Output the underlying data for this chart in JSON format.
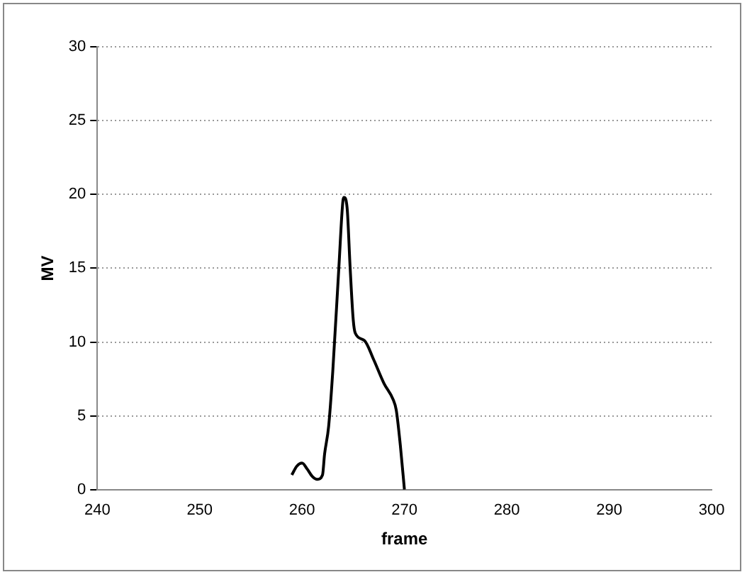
{
  "chart_data": {
    "type": "line",
    "xlabel": "frame",
    "ylabel": "MV",
    "x": [
      259,
      259.5,
      260,
      260.5,
      261,
      261.5,
      262,
      262.2,
      262.6,
      263,
      263.6,
      264,
      264.1,
      264.4,
      264.7,
      265,
      265.2,
      266.1,
      267,
      268,
      268.9,
      269.2,
      269.6,
      270
    ],
    "series": [
      {
        "color": "#000000",
        "values": [
          1,
          1.6,
          1.8,
          1.4,
          0.9,
          0.7,
          1,
          2.4,
          4.3,
          8,
          15.1,
          19.6,
          19.8,
          19.1,
          15,
          11.5,
          10.6,
          10.1,
          8.8,
          7.2,
          6.1,
          5.4,
          3,
          0
        ]
      }
    ],
    "xlim": [
      240,
      300
    ],
    "xticks": [
      240,
      250,
      260,
      270,
      280,
      290,
      300
    ],
    "ylim": [
      0,
      30
    ],
    "yticks": [
      0,
      5,
      10,
      15,
      20,
      25,
      30
    ],
    "grid": "y",
    "legend": false,
    "marker": "none",
    "line_style": "solid"
  }
}
